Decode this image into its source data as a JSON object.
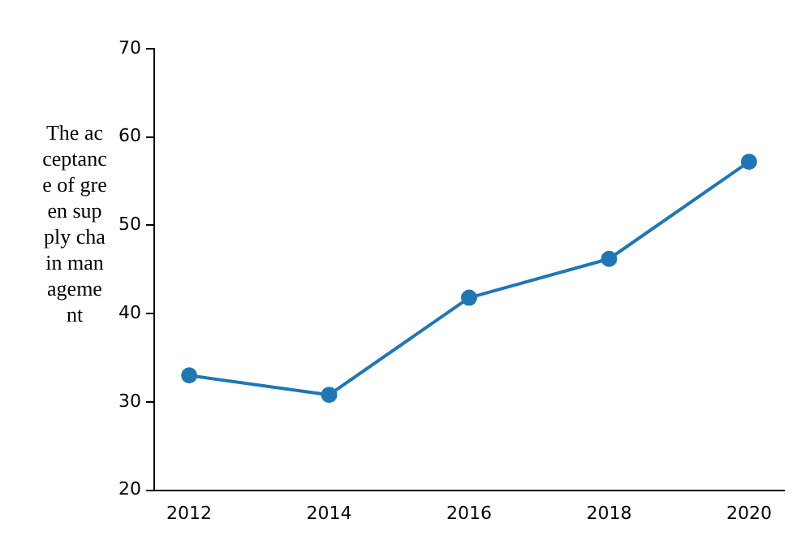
{
  "chart_data": {
    "type": "line",
    "ylabel": "The acceptance of green supply chain management",
    "x": [
      2012,
      2014,
      2016,
      2018,
      2020
    ],
    "series": [
      {
        "color": "#1f77b4",
        "values": [
          33,
          30.8,
          41.8,
          46.2,
          57.2
        ]
      }
    ],
    "xlim": [
      2011.5,
      2020.5
    ],
    "xticks": [
      2012,
      2014,
      2016,
      2018,
      2020
    ],
    "ylim": [
      20,
      70
    ],
    "yticks": [
      20,
      30,
      40,
      50,
      60,
      70
    ],
    "grid": false,
    "legend": false,
    "marker": "circle",
    "line_style": "solid"
  }
}
